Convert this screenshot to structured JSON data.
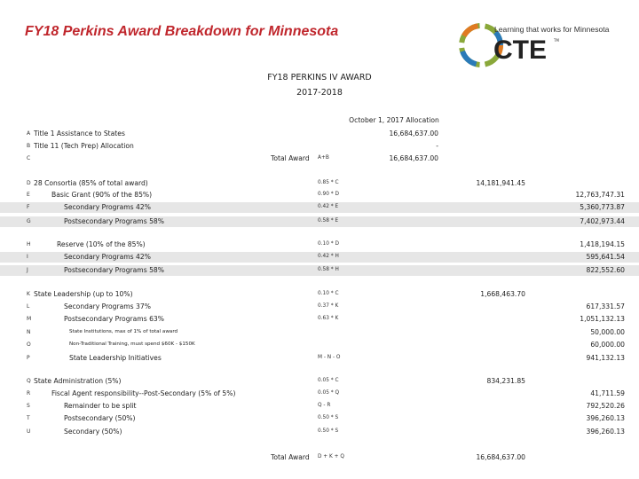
{
  "page_title": "FY18 Perkins Award Breakdown for Minnesota",
  "logo": {
    "tagline": "Learning that works for Minnesota",
    "wordmark": "CTE",
    "tm": "TM"
  },
  "heading": {
    "line1": "FY18 PERKINS IV AWARD",
    "line2": "2017-2018"
  },
  "allocation_header": "October 1, 2017 Allocation",
  "rows": [
    {
      "letter": "A",
      "label": "Title 1 Assistance to States",
      "formula": "",
      "v1": "",
      "v2": "16,684,637.00",
      "v3": ""
    },
    {
      "letter": "B",
      "label": "Title 11 (Tech Prep) Allocation",
      "formula": "",
      "v1": "",
      "v2": "-",
      "v3": ""
    },
    {
      "letter": "C",
      "label": "",
      "total": "Total Award",
      "formula": "A+B",
      "v1": "",
      "v2": "16,684,637.00",
      "v3": ""
    },
    {
      "letter": "D",
      "label": "28 Consortia (85% of total award)",
      "formula": "0.85 * C",
      "v1": "14,181,941.45",
      "v2": "",
      "v3": ""
    },
    {
      "letter": "E",
      "label": "Basic Grant (90% of the 85%)",
      "formula": "0.90 * D",
      "v1": "",
      "v2": "",
      "v3": "12,763,747.31"
    },
    {
      "letter": "F",
      "label": "Secondary Programs 42%",
      "formula": "0.42 * E",
      "v1": "",
      "v2": "",
      "v3": "5,360,773.87"
    },
    {
      "letter": "G",
      "label": "Postsecondary Programs 58%",
      "formula": "0.58 * E",
      "v1": "",
      "v2": "",
      "v3": "7,402,973.44"
    },
    {
      "letter": "H",
      "label": "Reserve (10% of the 85%)",
      "formula": "0.10 * D",
      "v1": "",
      "v2": "",
      "v3": "1,418,194.15"
    },
    {
      "letter": "I",
      "label": "Secondary Programs 42%",
      "formula": "0.42 * H",
      "v1": "",
      "v2": "",
      "v3": "595,641.54"
    },
    {
      "letter": "J",
      "label": "Postsecondary Programs 58%",
      "formula": "0.58 * H",
      "v1": "",
      "v2": "",
      "v3": "822,552.60"
    },
    {
      "letter": "K",
      "label": "State Leadership (up to 10%)",
      "formula": "0.10 * C",
      "v1": "1,668,463.70",
      "v2": "",
      "v3": ""
    },
    {
      "letter": "L",
      "label": "Secondary Programs 37%",
      "formula": "0.37 * K",
      "v1": "",
      "v2": "",
      "v3": "617,331.57"
    },
    {
      "letter": "M",
      "label": "Postsecondary Programs 63%",
      "formula": "0.63 * K",
      "v1": "",
      "v2": "",
      "v3": "1,051,132.13"
    },
    {
      "letter": "N",
      "label": "State Institutions, max of 1% of total award",
      "formula": "",
      "v1": "",
      "v2": "",
      "v3": "50,000.00"
    },
    {
      "letter": "O",
      "label": "Non-Traditional Training, must spend $60K - $150K",
      "formula": "",
      "v1": "",
      "v2": "",
      "v3": "60,000.00"
    },
    {
      "letter": "P",
      "label": "State Leadership Initiatives",
      "formula": "M - N - O",
      "v1": "",
      "v2": "",
      "v3": "941,132.13"
    },
    {
      "letter": "Q",
      "label": "State Administration (5%)",
      "formula": "0.05 * C",
      "v1": "834,231.85",
      "v2": "",
      "v3": ""
    },
    {
      "letter": "R",
      "label": "Fiscal Agent responsibility--Post-Secondary (5% of 5%)",
      "formula": "0.05 * Q",
      "v1": "",
      "v2": "",
      "v3": "41,711.59"
    },
    {
      "letter": "S",
      "label": "Remainder to be split",
      "formula": "Q - R",
      "v1": "",
      "v2": "",
      "v3": "792,520.26"
    },
    {
      "letter": "T",
      "label": "Postsecondary (50%)",
      "formula": "0.50 * S",
      "v1": "",
      "v2": "",
      "v3": "396,260.13"
    },
    {
      "letter": "U",
      "label": "Secondary (50%)",
      "formula": "0.50 * S",
      "v1": "",
      "v2": "",
      "v3": "396,260.13"
    },
    {
      "letter": "",
      "label": "",
      "total": "Total Award",
      "formula": "D + K + Q",
      "v1": "16,684,637.00",
      "v2": "",
      "v3": ""
    }
  ],
  "colors": {
    "title_red": "#c0272d",
    "row_shade": "#e6e6e6"
  }
}
